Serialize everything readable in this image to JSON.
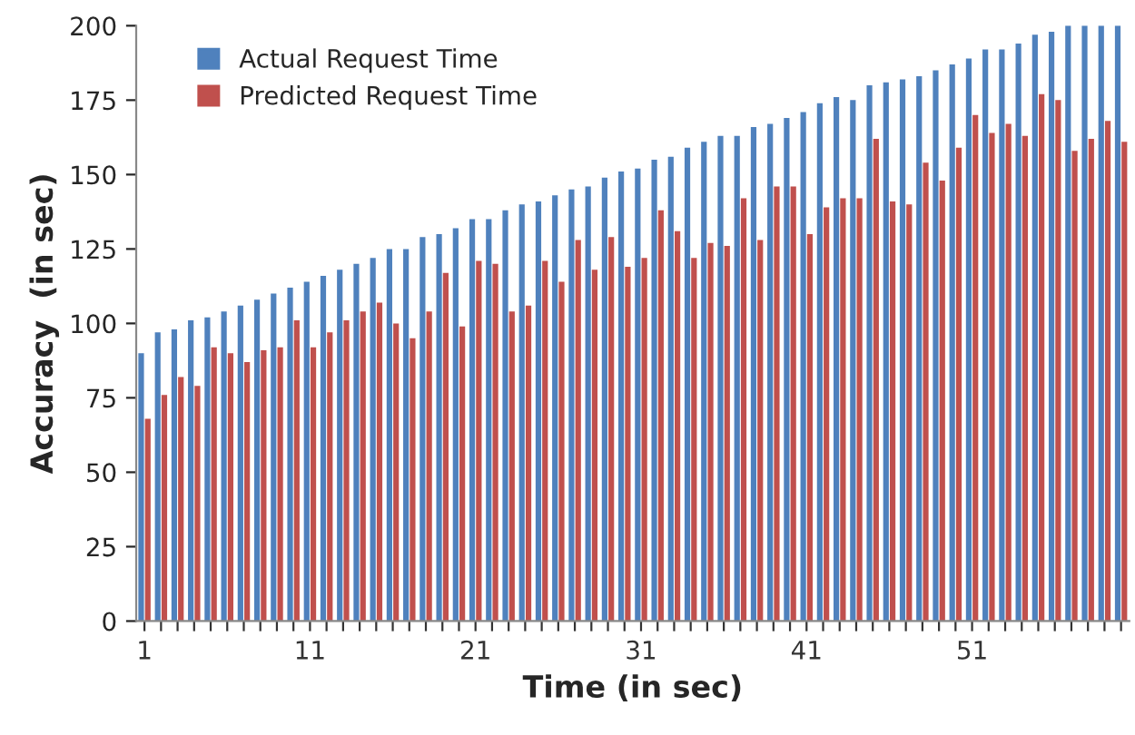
{
  "chart_data": {
    "type": "bar",
    "xlabel": "Time (in sec)",
    "ylabel": "Accuracy  (in sec)",
    "categories": [
      "1",
      null,
      null,
      null,
      null,
      null,
      null,
      null,
      null,
      null,
      "11",
      null,
      null,
      null,
      null,
      null,
      null,
      null,
      null,
      null,
      "21",
      null,
      null,
      null,
      null,
      null,
      null,
      null,
      null,
      null,
      "31",
      null,
      null,
      null,
      null,
      null,
      null,
      null,
      null,
      null,
      "41",
      null,
      null,
      null,
      null,
      null,
      null,
      null,
      null,
      null,
      "51",
      null,
      null,
      null,
      null,
      null,
      null,
      null,
      null,
      null
    ],
    "series": [
      {
        "name": "Actual Request Time",
        "color": "#4f81bd",
        "values": [
          90,
          97,
          98,
          101,
          102,
          104,
          106,
          108,
          110,
          112,
          114,
          116,
          118,
          120,
          122,
          125,
          125,
          129,
          130,
          132,
          135,
          135,
          138,
          140,
          141,
          143,
          145,
          146,
          149,
          151,
          152,
          155,
          156,
          159,
          161,
          163,
          163,
          166,
          167,
          169,
          171,
          174,
          176,
          175,
          180,
          181,
          182,
          183,
          185,
          187,
          189,
          192,
          192,
          194,
          197,
          198,
          200,
          200,
          200,
          200
        ]
      },
      {
        "name": "Predicted Request Time",
        "color": "#c0504d",
        "values": [
          68,
          76,
          82,
          79,
          92,
          90,
          87,
          91,
          92,
          101,
          92,
          97,
          101,
          104,
          107,
          100,
          95,
          104,
          117,
          99,
          121,
          120,
          104,
          106,
          121,
          114,
          128,
          118,
          129,
          119,
          122,
          138,
          131,
          122,
          127,
          126,
          142,
          128,
          146,
          146,
          130,
          139,
          142,
          142,
          162,
          141,
          140,
          154,
          148,
          159,
          170,
          164,
          167,
          163,
          177,
          175,
          158,
          162,
          168,
          161
        ]
      }
    ],
    "ylim": [
      0,
      200
    ],
    "yticks": [
      0,
      25,
      50,
      75,
      100,
      125,
      150,
      175,
      200
    ],
    "grid": false,
    "legend": "top left"
  }
}
